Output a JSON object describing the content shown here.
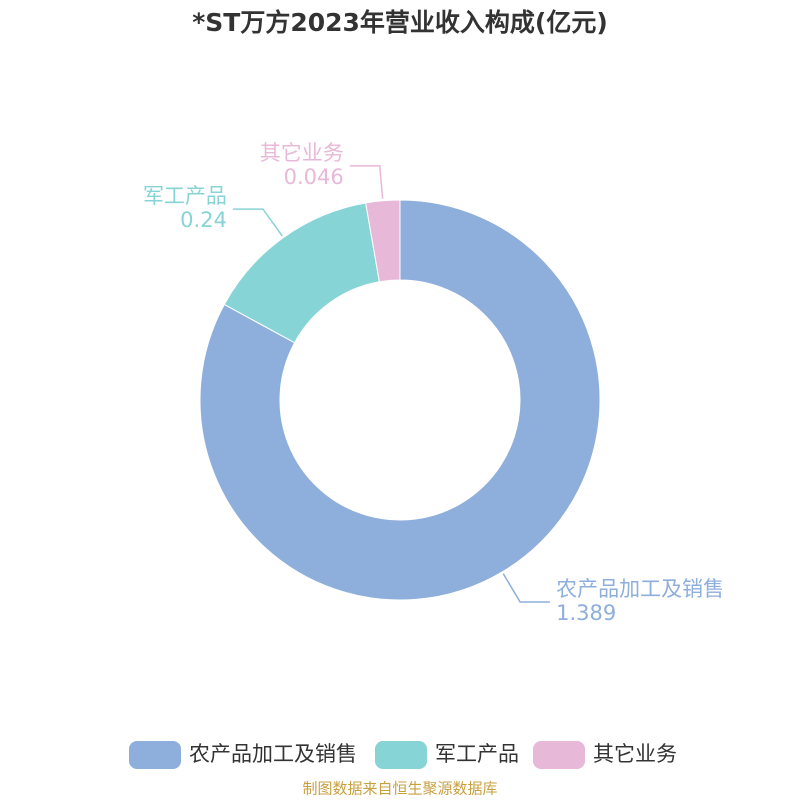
{
  "chart_data": {
    "type": "donut",
    "title": "*ST万方2023年营业收入构成(亿元)",
    "categories": [
      "农产品加工及销售",
      "军工产品",
      "其它业务"
    ],
    "values": [
      1.389,
      0.24,
      0.046
    ],
    "colors": [
      "#8eaedb",
      "#86d4d6",
      "#e8b8d8"
    ],
    "legend": "bottom",
    "source": "制图数据来自恒生聚源数据库"
  }
}
